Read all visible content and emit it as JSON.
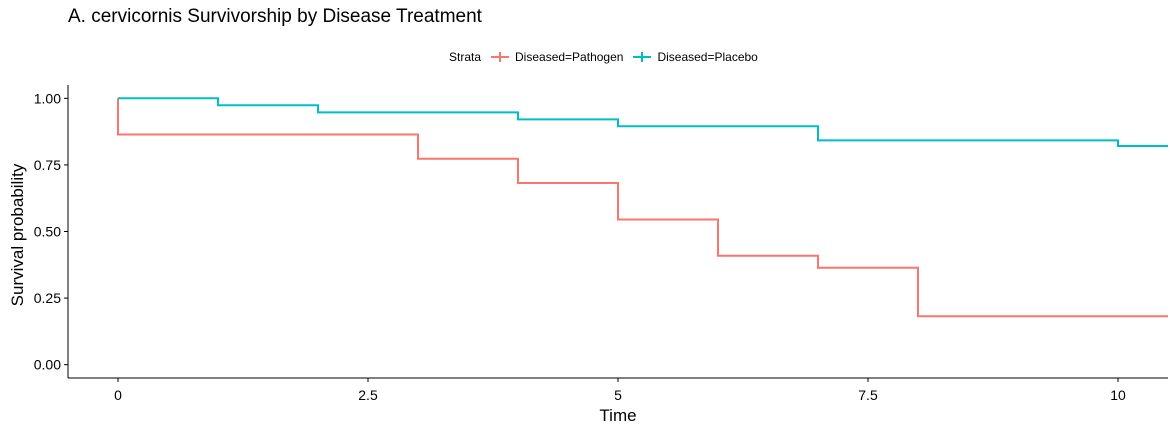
{
  "chart_data": {
    "type": "line",
    "step": true,
    "title": "A. cervicornis Survivorship by Disease Treatment",
    "xlabel": "Time",
    "ylabel": "Survival probability",
    "xlim": [
      -0.5,
      10.5
    ],
    "ylim": [
      -0.05,
      1.05
    ],
    "xticks": [
      0,
      2.5,
      5,
      7.5,
      10
    ],
    "xtick_labels": [
      "0",
      "2.5",
      "5",
      "7.5",
      "10"
    ],
    "yticks": [
      0,
      0.25,
      0.5,
      0.75,
      1
    ],
    "ytick_labels": [
      "0.00",
      "0.25",
      "0.50",
      "0.75",
      "1.00"
    ],
    "grid": false,
    "legend_position": "top",
    "legend_title": "Strata",
    "series": [
      {
        "name": "Diseased=Pathogen",
        "color": "#f8766d",
        "times": [
          0,
          0,
          3,
          4,
          5,
          6,
          7,
          8,
          10.5
        ],
        "survival": [
          1.0,
          0.864,
          0.773,
          0.682,
          0.545,
          0.409,
          0.364,
          0.182,
          0.182
        ]
      },
      {
        "name": "Diseased=Placebo",
        "color": "#00bfc4",
        "times": [
          0,
          1,
          2,
          4,
          5,
          7,
          10,
          10.5
        ],
        "survival": [
          1.0,
          0.974,
          0.947,
          0.921,
          0.895,
          0.842,
          0.821,
          0.821
        ]
      }
    ]
  }
}
